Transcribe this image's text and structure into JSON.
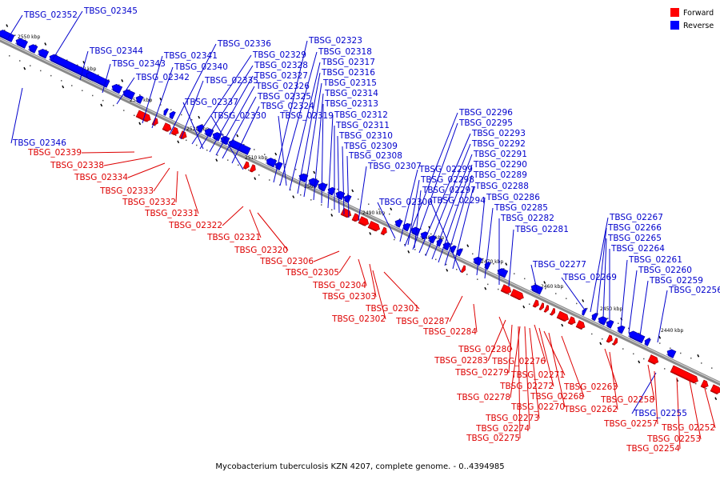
{
  "caption": "Mycobacterium tuberculosis KZN 4207, complete genome. - 0..4394985",
  "legend": [
    {
      "label": "Forward",
      "color": "#ff0000"
    },
    {
      "label": "Reverse",
      "color": "#0000ff"
    }
  ],
  "colors": {
    "forward": "#ff0000",
    "reverse": "#0000ff",
    "forward_text": "#dd0000",
    "reverse_text": "#0000cc",
    "backbone": "#888888"
  },
  "ticks": [
    "2550 kbp",
    "2540 kbp",
    "2530 kbp",
    "2520 kbp",
    "2510 kbp",
    "2500 kbp",
    "2490 kbp",
    "2480 kbp",
    "2470 kbp",
    "2460 kbp",
    "2450 kbp",
    "2440 kbp"
  ],
  "reverse_genes": [
    "TBSG_02352",
    "TBSG_02345",
    "TBSG_02344",
    "TBSG_02343",
    "TBSG_02342",
    "TBSG_02341",
    "TBSG_02340",
    "TBSG_02336",
    "TBSG_02335",
    "TBSG_02329",
    "TBSG_02328",
    "TBSG_02327",
    "TBSG_02326",
    "TBSG_02325",
    "TBSG_02324",
    "TBSG_02337",
    "TBSG_02330",
    "TBSG_02323",
    "TBSG_02318",
    "TBSG_02317",
    "TBSG_02316",
    "TBSG_02315",
    "TBSG_02314",
    "TBSG_02313",
    "TBSG_02319",
    "TBSG_02312",
    "TBSG_02311",
    "TBSG_02310",
    "TBSG_02309",
    "TBSG_02308",
    "TBSG_02307",
    "TBSG_02346",
    "TBSG_02296",
    "TBSG_02295",
    "TBSG_02293",
    "TBSG_02292",
    "TBSG_02291",
    "TBSG_02290",
    "TBSG_02289",
    "TBSG_02288",
    "TBSG_02299",
    "TBSG_02298",
    "TBSG_02297",
    "TBSG_02294",
    "TBSG_02286",
    "TBSG_02285",
    "TBSG_02282",
    "TBSG_02281",
    "TBSG_02300",
    "TBSG_02267",
    "TBSG_02266",
    "TBSG_02265",
    "TBSG_02264",
    "TBSG_02261",
    "TBSG_02260",
    "TBSG_02259",
    "TBSG_02256",
    "TBSG_02277",
    "TBSG_02269",
    "TBSG_02255"
  ],
  "forward_genes": [
    "TBSG_02339",
    "TBSG_02338",
    "TBSG_02334",
    "TBSG_02333",
    "TBSG_02332",
    "TBSG_02331",
    "TBSG_02322",
    "TBSG_02321",
    "TBSG_02320",
    "TBSG_02306",
    "TBSG_02305",
    "TBSG_02304",
    "TBSG_02303",
    "TBSG_02302",
    "TBSG_02301",
    "TBSG_02287",
    "TBSG_02284",
    "TBSG_02280",
    "TBSG_02283",
    "TBSG_02279",
    "TBSG_02276",
    "TBSG_02278",
    "TBSG_02272",
    "TBSG_02271",
    "TBSG_02270",
    "TBSG_02268",
    "TBSG_02273",
    "TBSG_02274",
    "TBSG_02275",
    "TBSG_02263",
    "TBSG_02262",
    "TBSG_02258",
    "TBSG_02257",
    "TBSG_02252",
    "TBSG_02253",
    "TBSG_02254"
  ]
}
